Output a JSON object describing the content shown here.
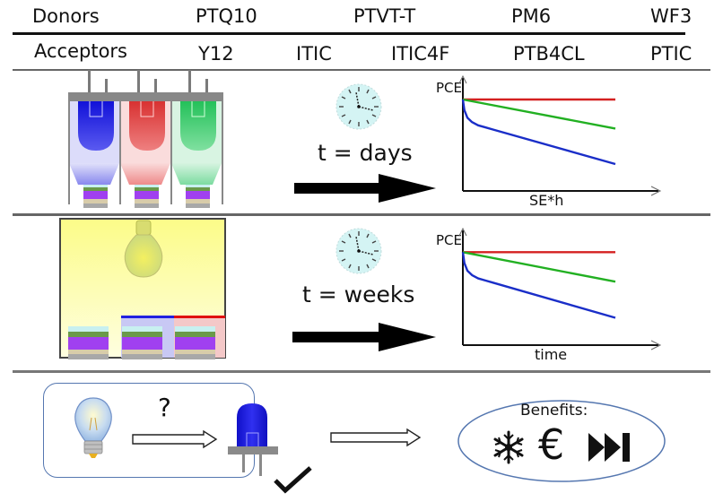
{
  "header": {
    "donors_label": "Donors",
    "donors": [
      "PTQ10",
      "PTVT-T",
      "PM6",
      "WF3"
    ],
    "acceptors_label": "Acceptors",
    "acceptors": [
      "Y12",
      "ITIC",
      "ITIC4F",
      "PTB4CL",
      "PTIC"
    ]
  },
  "row1": {
    "setup_icon": "led-aging-setup",
    "led_colors": [
      "#1a1adc",
      "#d93a3a",
      "#2ebf5a"
    ],
    "clock_icon": "clock-icon",
    "time_label": "t = days",
    "arrow_icon": "arrow-right-icon",
    "chart": {
      "ylabel": "PCE",
      "xlabel": "SE*h"
    }
  },
  "row2": {
    "setup_icon": "lamp-aging-setup",
    "clock_icon": "clock-icon",
    "time_label": "t = weeks",
    "arrow_icon": "arrow-right-icon",
    "chart": {
      "ylabel": "PCE",
      "xlabel": "time"
    }
  },
  "row3": {
    "bulb_icon": "lightbulb-icon",
    "question_mark": "?",
    "led_icon": "led-icon",
    "check_icon": "checkmark-icon",
    "benefits_label": "Benefits:",
    "benefit_icons": [
      "snowflake-icon",
      "euro-icon",
      "fast-forward-icon"
    ],
    "euro_glyph": "€"
  },
  "colors": {
    "stable": "#d42020",
    "moderate": "#22b022",
    "degrading": "#1a2ec8",
    "outline_blue": "#5577b0",
    "clock_face": "#d4f4f4"
  },
  "chart_data": [
    {
      "type": "line",
      "title": "",
      "xlabel": "SE*h",
      "ylabel": "PCE",
      "xlim": [
        0,
        1
      ],
      "ylim": [
        0,
        1
      ],
      "grid": false,
      "series": [
        {
          "name": "red",
          "color": "#d42020",
          "x": [
            0,
            1
          ],
          "y": [
            0.85,
            0.85
          ]
        },
        {
          "name": "green",
          "color": "#22b022",
          "x": [
            0,
            1
          ],
          "y": [
            0.85,
            0.58
          ]
        },
        {
          "name": "blue",
          "color": "#1a2ec8",
          "x": [
            0,
            0.01,
            0.03,
            0.06,
            0.1,
            0.15,
            0.2,
            1
          ],
          "y": [
            0.85,
            0.75,
            0.68,
            0.64,
            0.61,
            0.59,
            0.57,
            0.25
          ]
        }
      ]
    },
    {
      "type": "line",
      "title": "",
      "xlabel": "time",
      "ylabel": "PCE",
      "xlim": [
        0,
        1
      ],
      "ylim": [
        0,
        1
      ],
      "grid": false,
      "series": [
        {
          "name": "red",
          "color": "#d42020",
          "x": [
            0,
            1
          ],
          "y": [
            0.85,
            0.85
          ]
        },
        {
          "name": "green",
          "color": "#22b022",
          "x": [
            0,
            1
          ],
          "y": [
            0.85,
            0.58
          ]
        },
        {
          "name": "blue",
          "color": "#1a2ec8",
          "x": [
            0,
            0.01,
            0.03,
            0.06,
            0.1,
            0.15,
            0.2,
            1
          ],
          "y": [
            0.85,
            0.75,
            0.68,
            0.64,
            0.61,
            0.59,
            0.57,
            0.25
          ]
        }
      ]
    }
  ]
}
